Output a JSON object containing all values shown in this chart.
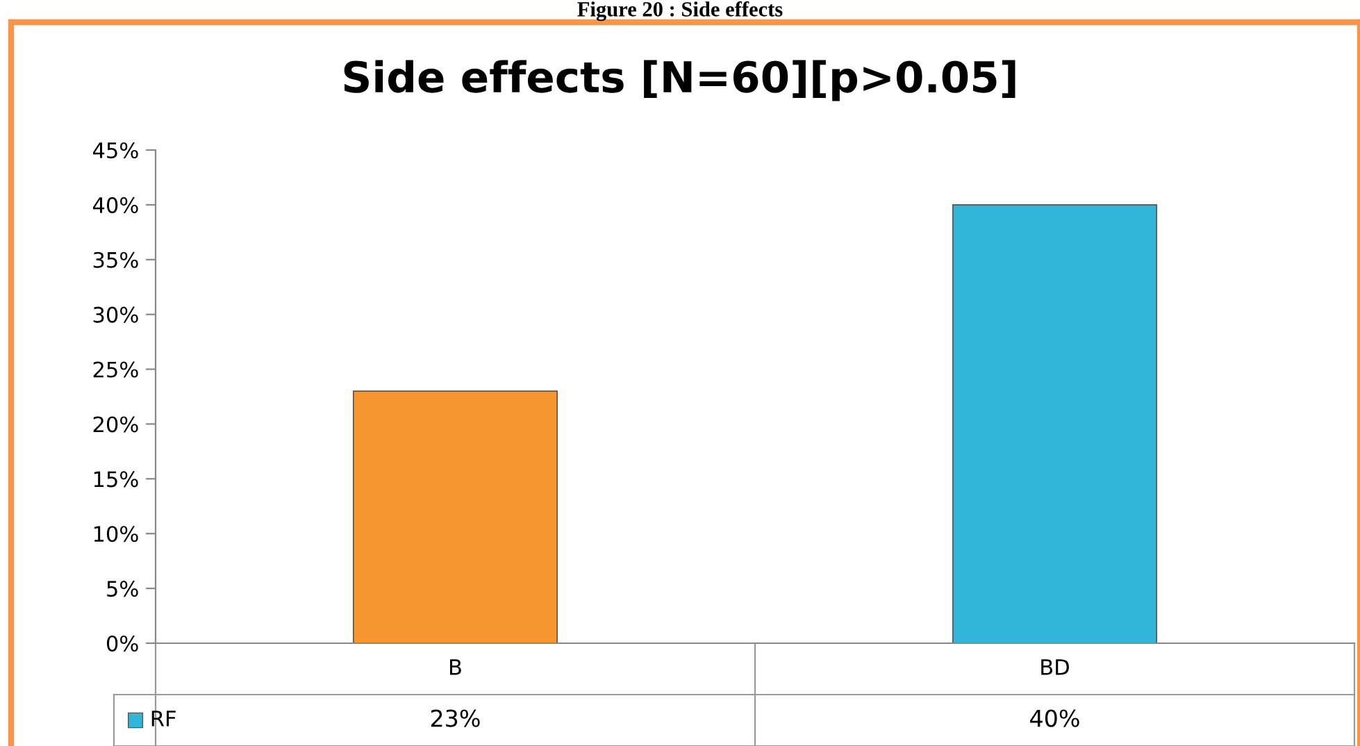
{
  "chart_data": {
    "type": "bar",
    "title": "Side effects [N=60][p>0.05]",
    "annotations": [
      "Figure 20 : Side effects"
    ],
    "categories": [
      "B",
      "BD"
    ],
    "series": [
      {
        "name": "RF",
        "color": "#31b5d8",
        "colors": [
          "#f7962f",
          "#31b5d8"
        ],
        "values": [
          23,
          40
        ],
        "value_labels": [
          "23%",
          "40%"
        ]
      }
    ],
    "ylim": [
      0,
      45
    ],
    "yticks": [
      {
        "value": 0,
        "label": "0%"
      },
      {
        "value": 5,
        "label": "5%"
      },
      {
        "value": 10,
        "label": "10%"
      },
      {
        "value": 15,
        "label": "15%"
      },
      {
        "value": 20,
        "label": "20%"
      },
      {
        "value": 25,
        "label": "25%"
      },
      {
        "value": 30,
        "label": "30%"
      },
      {
        "value": 35,
        "label": "35%"
      },
      {
        "value": 40,
        "label": "40%"
      },
      {
        "value": 45,
        "label": "45%"
      }
    ],
    "grid": false
  }
}
